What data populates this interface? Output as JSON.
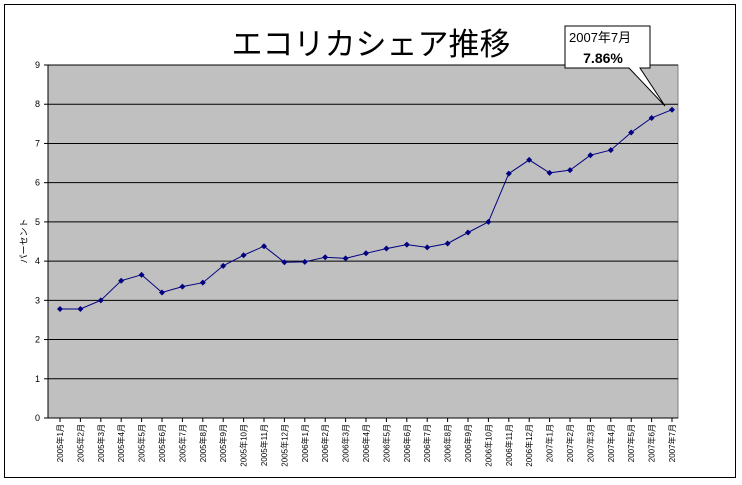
{
  "chart_data": {
    "type": "line",
    "title": "エコリカシェア推移",
    "ylabel": "パーセント",
    "xlabel": "",
    "ylim": [
      0,
      9
    ],
    "yticks": [
      0,
      1,
      2,
      3,
      4,
      5,
      6,
      7,
      8,
      9
    ],
    "grid": true,
    "legend": "none",
    "categories": [
      "2005年1月",
      "2005年2月",
      "2005年3月",
      "2005年4月",
      "2005年5月",
      "2005年6月",
      "2005年7月",
      "2005年8月",
      "2005年9月",
      "2005年10月",
      "2005年11月",
      "2005年12月",
      "2006年1月",
      "2006年2月",
      "2006年3月",
      "2006年4月",
      "2006年5月",
      "2006年6月",
      "2006年7月",
      "2006年8月",
      "2006年9月",
      "2006年10月",
      "2006年11月",
      "2006年12月",
      "2007年1月",
      "2007年2月",
      "2007年3月",
      "2007年4月",
      "2007年5月",
      "2007年6月",
      "2007年7月"
    ],
    "series": [
      {
        "values": [
          2.78,
          2.78,
          3.0,
          3.5,
          3.65,
          3.2,
          3.35,
          3.45,
          3.88,
          4.15,
          4.38,
          3.97,
          3.98,
          4.1,
          4.07,
          4.2,
          4.32,
          4.42,
          4.35,
          4.45,
          4.73,
          5.0,
          6.23,
          6.58,
          6.25,
          6.32,
          6.7,
          6.83,
          7.28,
          7.65,
          7.86
        ]
      }
    ],
    "annotation": {
      "line1": "2007年7月",
      "line2": "7.86%"
    }
  },
  "colors": {
    "plot_area": "#c0c0c0",
    "line": "#000080",
    "gridline": "#000000"
  }
}
